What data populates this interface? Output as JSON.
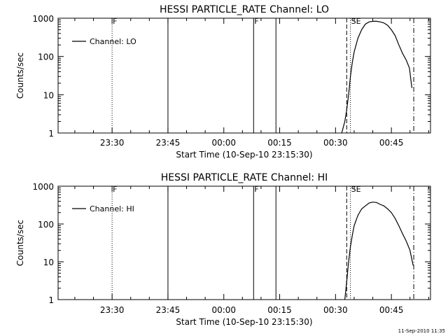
{
  "footer": {
    "stamp": "11-Sep-2010 11:35"
  },
  "chart_data": [
    {
      "type": "line",
      "title": "HESSI PARTICLE_RATE Channel: LO",
      "xlabel": "Start Time (10-Sep-10 23:15:30)",
      "ylabel": "Counts/sec",
      "yscale": "log",
      "ylim": [
        1,
        1000
      ],
      "xlim_minutes_after_start": [
        0,
        100
      ],
      "x_tick_labels": [
        "23:30",
        "23:45",
        "00:00",
        "00:15",
        "00:30",
        "00:45"
      ],
      "y_tick_labels": [
        "1",
        "10",
        "100",
        "1000"
      ],
      "legend": {
        "label": "Channel: LO",
        "placement": "top-left"
      },
      "markers": [
        {
          "label": "F",
          "time": "23:30",
          "style": "dotted"
        },
        {
          "label": "",
          "time": "23:45",
          "style": "solid"
        },
        {
          "label": "F",
          "time": "00:08",
          "style": "solid"
        },
        {
          "label": "",
          "time": "00:14",
          "style": "solid"
        },
        {
          "label": "",
          "time": "00:33",
          "style": "dashed"
        },
        {
          "label": "SE",
          "time": "00:34",
          "style": "dotted"
        },
        {
          "label": "",
          "time": "00:51",
          "style": "dashdot"
        }
      ],
      "series": [
        {
          "name": "Channel: LO",
          "x": [
            "00:31:40",
            "00:32:30",
            "00:33:00",
            "00:33:30",
            "00:34:00",
            "00:34:30",
            "00:35:00",
            "00:36:00",
            "00:37:00",
            "00:38:00",
            "00:39:00",
            "00:40:00",
            "00:41:00",
            "00:42:00",
            "00:43:00",
            "00:44:00",
            "00:45:00",
            "00:46:00",
            "00:47:00",
            "00:48:00",
            "00:49:00",
            "00:49:50",
            "00:50:30"
          ],
          "y": [
            1,
            2,
            4,
            10,
            30,
            70,
            130,
            300,
            500,
            700,
            800,
            830,
            830,
            800,
            750,
            650,
            500,
            350,
            200,
            120,
            80,
            50,
            15
          ]
        }
      ]
    },
    {
      "type": "line",
      "title": "HESSI PARTICLE_RATE Channel: HI",
      "xlabel": "Start Time (10-Sep-10 23:15:30)",
      "ylabel": "Counts/sec",
      "yscale": "log",
      "ylim": [
        1,
        1000
      ],
      "xlim_minutes_after_start": [
        0,
        100
      ],
      "x_tick_labels": [
        "23:30",
        "23:45",
        "00:00",
        "00:15",
        "00:30",
        "00:45"
      ],
      "y_tick_labels": [
        "1",
        "10",
        "100",
        "1000"
      ],
      "legend": {
        "label": "Channel: HI",
        "placement": "top-left"
      },
      "markers": [
        {
          "label": "F",
          "time": "23:30",
          "style": "dotted"
        },
        {
          "label": "",
          "time": "23:45",
          "style": "solid"
        },
        {
          "label": "F",
          "time": "00:08",
          "style": "solid"
        },
        {
          "label": "",
          "time": "00:14",
          "style": "solid"
        },
        {
          "label": "",
          "time": "00:33",
          "style": "dashed"
        },
        {
          "label": "SE",
          "time": "00:34",
          "style": "dotted"
        },
        {
          "label": "",
          "time": "00:51",
          "style": "dashdot"
        }
      ],
      "series": [
        {
          "name": "Channel: HI",
          "x": [
            "00:32:30",
            "00:33:00",
            "00:33:30",
            "00:34:00",
            "00:34:30",
            "00:35:00",
            "00:36:00",
            "00:37:00",
            "00:38:00",
            "00:39:00",
            "00:40:00",
            "00:41:00",
            "00:42:00",
            "00:43:00",
            "00:44:00",
            "00:45:00",
            "00:46:00",
            "00:47:00",
            "00:48:00",
            "00:49:00",
            "00:50:00",
            "00:50:50"
          ],
          "y": [
            1,
            3,
            10,
            25,
            50,
            90,
            170,
            250,
            300,
            360,
            380,
            370,
            330,
            300,
            250,
            200,
            140,
            90,
            55,
            35,
            20,
            8
          ]
        }
      ]
    }
  ]
}
